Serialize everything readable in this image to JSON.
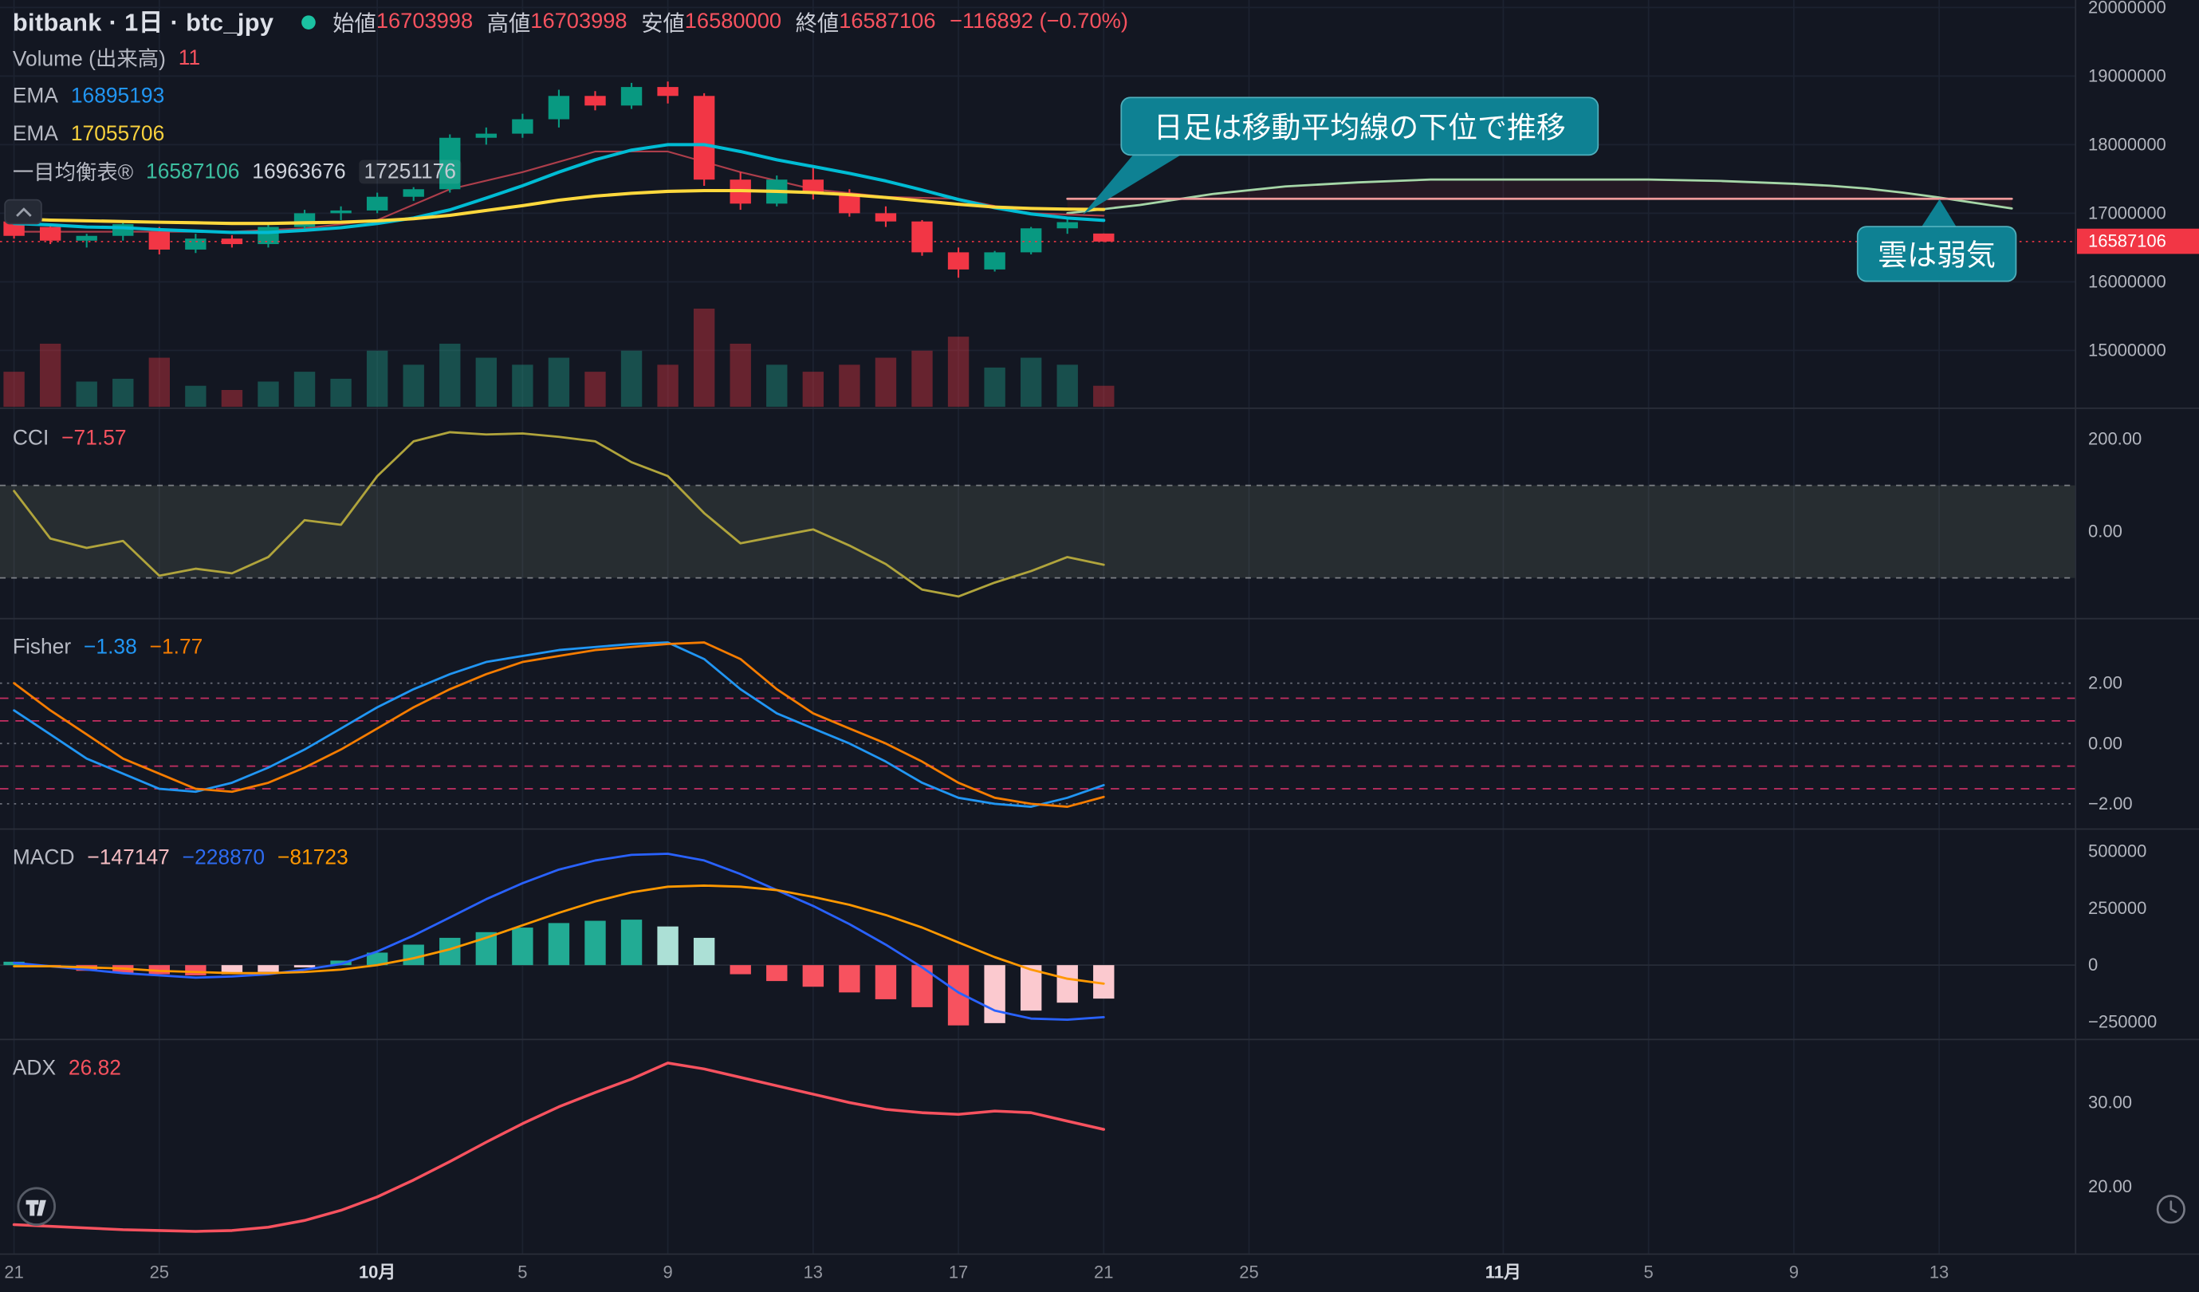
{
  "header": {
    "symbol_title": "bitbank · 1日 · btc_jpy",
    "ohlc": {
      "open_label": "始値",
      "open": "16703998",
      "high_label": "高値",
      "high": "16703998",
      "low_label": "安値",
      "low": "16580000",
      "close_label": "終値",
      "close": "16587106",
      "change": "−116892 (−0.70%)"
    },
    "volume_label": "Volume (出来高)",
    "volume_value": "11",
    "ema_label": "EMA",
    "ema1_value": "16895193",
    "ema2_value": "17055706",
    "ichimoku_label": "一目均衡表®",
    "ichimoku_v1": "16587106",
    "ichimoku_v2": "16963676",
    "ichimoku_v3": "17251176"
  },
  "annotations": {
    "ma_callout": "日足は移動平均線の下位で推移",
    "cloud_callout": "雲は弱気"
  },
  "price_axis": {
    "labels": [
      "20000000",
      "19000000",
      "18000000",
      "17000000",
      "16000000",
      "15000000"
    ],
    "values": [
      20000000,
      19000000,
      18000000,
      17000000,
      16000000,
      15000000
    ],
    "last_price": "16587106",
    "last_price_value": 16587106
  },
  "time_axis": {
    "labels": [
      "21",
      "25",
      "10月",
      "5",
      "9",
      "13",
      "17",
      "21",
      "25",
      "11月",
      "5",
      "9",
      "13"
    ]
  },
  "panes": {
    "cci": {
      "label": "CCI",
      "value": "−71.57",
      "axis_labels": [
        "200.00",
        "0.00"
      ],
      "axis_values": [
        200,
        0
      ]
    },
    "fisher": {
      "label": "Fisher",
      "value1": "−1.38",
      "value2": "−1.77",
      "axis_labels": [
        "2.00",
        "0.00",
        "−2.00"
      ],
      "axis_values": [
        2,
        0,
        -2
      ]
    },
    "macd": {
      "label": "MACD",
      "value_hist": "−147147",
      "value_macd": "−228870",
      "value_signal": "−81723",
      "axis_labels": [
        "500000",
        "250000",
        "0",
        "−250000"
      ],
      "axis_values": [
        500000,
        250000,
        0,
        -250000
      ]
    },
    "adx": {
      "label": "ADX",
      "value": "26.82",
      "axis_labels": [
        "30.00",
        "20.00"
      ],
      "axis_values": [
        30,
        20
      ]
    }
  },
  "colors": {
    "up": "#089981",
    "down": "#f23645",
    "ema_fast": "#00bcd4",
    "ema_slow": "#ffd83d",
    "cloud_a": "#a5d6a7",
    "cloud_b": "#ef9a9a",
    "kijun": "#ad3e4b",
    "cci": "#b0a43c",
    "fisher": "#2196f3",
    "trigger": "#f57c00",
    "macd_line": "#2962ff",
    "signal_line": "#ff9800",
    "hist_up": "#22ab94",
    "hist_up_light": "#ace0d6",
    "hist_dn": "#f7525f",
    "hist_dn_light": "#fbc9cf",
    "adx": "#f7525f",
    "callout_bg": "#0e8193",
    "badge_bg": "#f23645"
  },
  "chart_data": [
    {
      "type": "candlestick",
      "title": "bitbank btc_jpy 1D",
      "x_dates": [
        "9/21",
        "9/22",
        "9/23",
        "9/24",
        "9/25",
        "9/26",
        "9/27",
        "9/28",
        "9/29",
        "9/30",
        "10/1",
        "10/2",
        "10/3",
        "10/4",
        "10/5",
        "10/6",
        "10/7",
        "10/8",
        "10/9",
        "10/10",
        "10/11",
        "10/12",
        "10/13",
        "10/14",
        "10/15",
        "10/16",
        "10/17",
        "10/18",
        "10/19",
        "10/20",
        "10/21"
      ],
      "open": [
        16880000,
        16800000,
        16600000,
        16670000,
        16730000,
        16470000,
        16630000,
        16550000,
        16800000,
        17000000,
        17040000,
        17240000,
        17350000,
        18100000,
        18160000,
        18370000,
        18710000,
        18570000,
        18840000,
        18710000,
        17490000,
        17140000,
        17490000,
        17290000,
        17000000,
        16880000,
        16430000,
        16180000,
        16430000,
        16780000,
        16703998
      ],
      "high": [
        17050000,
        16850000,
        16700000,
        16900000,
        16800000,
        16700000,
        16680000,
        16850000,
        17050000,
        17100000,
        17300000,
        17380000,
        18150000,
        18250000,
        18450000,
        18800000,
        18780000,
        18900000,
        18920000,
        18750000,
        17600000,
        17550000,
        17690000,
        17350000,
        17100000,
        16900000,
        16500000,
        16450000,
        16800000,
        16920000,
        16703998
      ],
      "low": [
        16630000,
        16550000,
        16500000,
        16600000,
        16400000,
        16420000,
        16500000,
        16500000,
        16750000,
        16900000,
        17000000,
        17180000,
        17300000,
        18000000,
        18100000,
        18250000,
        18500000,
        18520000,
        18600000,
        17400000,
        17050000,
        17100000,
        17200000,
        16950000,
        16800000,
        16380000,
        16060000,
        16150000,
        16400000,
        16700000,
        16580000
      ],
      "close": [
        16670000,
        16600000,
        16670000,
        16840000,
        16470000,
        16630000,
        16550000,
        16800000,
        17000000,
        17040000,
        17240000,
        17350000,
        18100000,
        18160000,
        18370000,
        18710000,
        18570000,
        18840000,
        18710000,
        17490000,
        17140000,
        17490000,
        17290000,
        17000000,
        16880000,
        16430000,
        16180000,
        16430000,
        16780000,
        16870000,
        16587106
      ],
      "volume": [
        25,
        45,
        18,
        20,
        35,
        15,
        12,
        18,
        25,
        20,
        40,
        30,
        45,
        35,
        30,
        35,
        25,
        40,
        30,
        70,
        45,
        30,
        25,
        30,
        35,
        40,
        50,
        28,
        35,
        30,
        15
      ],
      "series": [
        {
          "name": "EMA fast",
          "values": [
            16850000,
            16830000,
            16800000,
            16790000,
            16760000,
            16740000,
            16720000,
            16720000,
            16750000,
            16790000,
            16850000,
            16930000,
            17050000,
            17220000,
            17400000,
            17600000,
            17780000,
            17920000,
            18000000,
            18000000,
            17900000,
            17780000,
            17680000,
            17580000,
            17470000,
            17340000,
            17200000,
            17080000,
            16990000,
            16930000,
            16895193
          ]
        },
        {
          "name": "EMA slow",
          "values": [
            16920000,
            16900000,
            16890000,
            16880000,
            16870000,
            16860000,
            16850000,
            16850000,
            16860000,
            16870000,
            16890000,
            16920000,
            16970000,
            17040000,
            17110000,
            17190000,
            17250000,
            17290000,
            17320000,
            17330000,
            17330000,
            17320000,
            17300000,
            17270000,
            17230000,
            17180000,
            17130000,
            17090000,
            17070000,
            17060000,
            17055706
          ]
        }
      ],
      "ichimoku": {
        "senkou_a": {
          "idx": [
            29,
            31,
            33,
            35,
            37,
            39,
            41,
            43,
            45,
            47,
            49,
            50,
            51,
            52,
            53,
            54,
            55
          ],
          "values": [
            17000000,
            17120000,
            17280000,
            17390000,
            17450000,
            17490000,
            17490000,
            17490000,
            17490000,
            17470000,
            17430000,
            17400000,
            17360000,
            17300000,
            17230000,
            17150000,
            17070000
          ]
        },
        "senkou_b": {
          "idx": [
            29,
            55
          ],
          "values": [
            17210000,
            17210000
          ]
        },
        "base": {
          "idx": [
            0,
            2,
            4,
            6,
            8,
            10,
            12,
            14,
            16,
            18,
            20,
            22,
            24,
            26,
            28,
            30
          ],
          "values": [
            16730000,
            16730000,
            16730000,
            16730000,
            16780000,
            16900000,
            17350000,
            17600000,
            17900000,
            17900000,
            17600000,
            17350000,
            17240000,
            17210000,
            17000000,
            16963676
          ]
        }
      },
      "last_price": 16587106,
      "ylim": [
        14800000,
        20100000
      ]
    },
    {
      "type": "line",
      "name": "CCI",
      "values": [
        88,
        -15,
        -35,
        -20,
        -95,
        -80,
        -90,
        -55,
        25,
        15,
        120,
        195,
        215,
        210,
        212,
        205,
        195,
        150,
        120,
        40,
        -25,
        -10,
        5,
        -30,
        -70,
        -125,
        -140,
        -110,
        -85,
        -55,
        -71.57
      ],
      "last": -71.57,
      "band": [
        100,
        -100
      ],
      "ylim": [
        -230,
        230
      ]
    },
    {
      "type": "line",
      "name": "Fisher",
      "series": [
        {
          "name": "fisher",
          "values": [
            1.1,
            0.3,
            -0.5,
            -1.0,
            -1.5,
            -1.6,
            -1.3,
            -0.8,
            -0.2,
            0.5,
            1.2,
            1.8,
            2.3,
            2.7,
            2.9,
            3.1,
            3.2,
            3.3,
            3.35,
            2.8,
            1.8,
            1.0,
            0.5,
            0.0,
            -0.6,
            -1.3,
            -1.8,
            -2.0,
            -2.1,
            -1.8,
            -1.38
          ]
        },
        {
          "name": "trigger",
          "values": [
            2.0,
            1.1,
            0.3,
            -0.5,
            -1.0,
            -1.5,
            -1.6,
            -1.3,
            -0.8,
            -0.2,
            0.5,
            1.2,
            1.8,
            2.3,
            2.7,
            2.9,
            3.1,
            3.2,
            3.3,
            3.35,
            2.8,
            1.8,
            1.0,
            0.5,
            0.0,
            -0.6,
            -1.3,
            -1.8,
            -2.0,
            -2.1,
            -1.77
          ]
        }
      ],
      "levels": [
        2,
        0,
        -2
      ],
      "levels_pink": [
        1.5,
        0.75,
        -0.75,
        -1.5
      ]
    },
    {
      "type": "macd",
      "hist": [
        15000,
        -8000,
        -25000,
        -35000,
        -40000,
        -45000,
        -40000,
        -30000,
        -10000,
        20000,
        55000,
        90000,
        120000,
        145000,
        165000,
        185000,
        195000,
        200000,
        170000,
        120000,
        -40000,
        -70000,
        -95000,
        -120000,
        -150000,
        -185000,
        -265000,
        -255000,
        -200000,
        -165000,
        -147147
      ],
      "macd": [
        10000,
        -5000,
        -20000,
        -35000,
        -45000,
        -55000,
        -50000,
        -40000,
        -20000,
        5000,
        60000,
        130000,
        210000,
        290000,
        360000,
        420000,
        460000,
        485000,
        490000,
        460000,
        400000,
        330000,
        260000,
        180000,
        90000,
        -10000,
        -120000,
        -200000,
        -235000,
        -240000,
        -228870
      ],
      "signal": [
        -5000,
        -5000,
        -10000,
        -15000,
        -25000,
        -30000,
        -35000,
        -35000,
        -30000,
        -20000,
        0,
        30000,
        70000,
        120000,
        175000,
        230000,
        280000,
        320000,
        345000,
        350000,
        345000,
        330000,
        300000,
        265000,
        220000,
        165000,
        100000,
        35000,
        -20000,
        -60000,
        -81723
      ]
    },
    {
      "type": "line",
      "name": "ADX",
      "values": [
        15.5,
        15.3,
        15.1,
        14.9,
        14.8,
        14.7,
        14.8,
        15.2,
        16.0,
        17.2,
        18.8,
        20.8,
        23.0,
        25.3,
        27.5,
        29.5,
        31.2,
        32.8,
        34.7,
        34.0,
        33.0,
        32.0,
        31.0,
        30.0,
        29.2,
        28.8,
        28.6,
        29.0,
        28.8,
        27.8,
        26.82
      ],
      "last": 26.82
    }
  ]
}
